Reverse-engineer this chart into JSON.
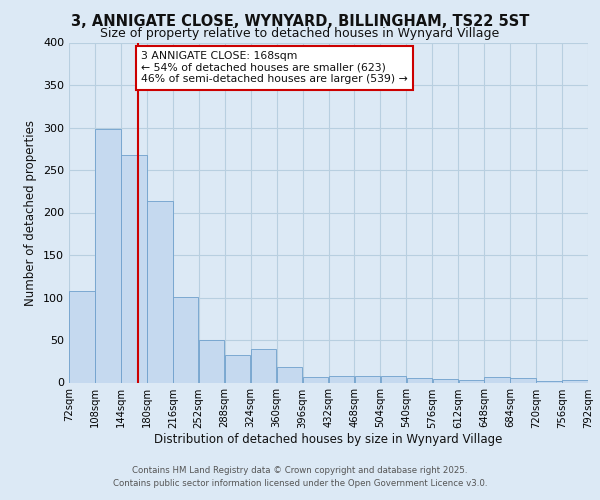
{
  "title_line1": "3, ANNIGATE CLOSE, WYNYARD, BILLINGHAM, TS22 5ST",
  "title_line2": "Size of property relative to detached houses in Wynyard Village",
  "xlabel": "Distribution of detached houses by size in Wynyard Village",
  "ylabel": "Number of detached properties",
  "footer_line1": "Contains HM Land Registry data © Crown copyright and database right 2025.",
  "footer_line2": "Contains public sector information licensed under the Open Government Licence v3.0.",
  "annotation_line1": "3 ANNIGATE CLOSE: 168sqm",
  "annotation_line2": "← 54% of detached houses are smaller (623)",
  "annotation_line3": "46% of semi-detached houses are larger (539) →",
  "property_size_sqm": 168,
  "bar_color": "#c5d9ef",
  "bar_edge_color": "#6fa0cc",
  "vline_color": "#cc0000",
  "annotation_box_edgecolor": "#cc0000",
  "grid_color": "#b8cfe0",
  "background_color": "#dce9f5",
  "figure_background": "#dce9f5",
  "bins": [
    72,
    108,
    144,
    180,
    216,
    252,
    288,
    324,
    360,
    396,
    432,
    468,
    504,
    540,
    576,
    612,
    648,
    684,
    720,
    756,
    792
  ],
  "bar_heights": [
    108,
    298,
    268,
    213,
    101,
    50,
    32,
    40,
    18,
    7,
    8,
    8,
    8,
    5,
    4,
    3,
    6,
    5,
    2,
    3
  ],
  "ylim": [
    0,
    400
  ],
  "yticks": [
    0,
    50,
    100,
    150,
    200,
    250,
    300,
    350,
    400
  ]
}
